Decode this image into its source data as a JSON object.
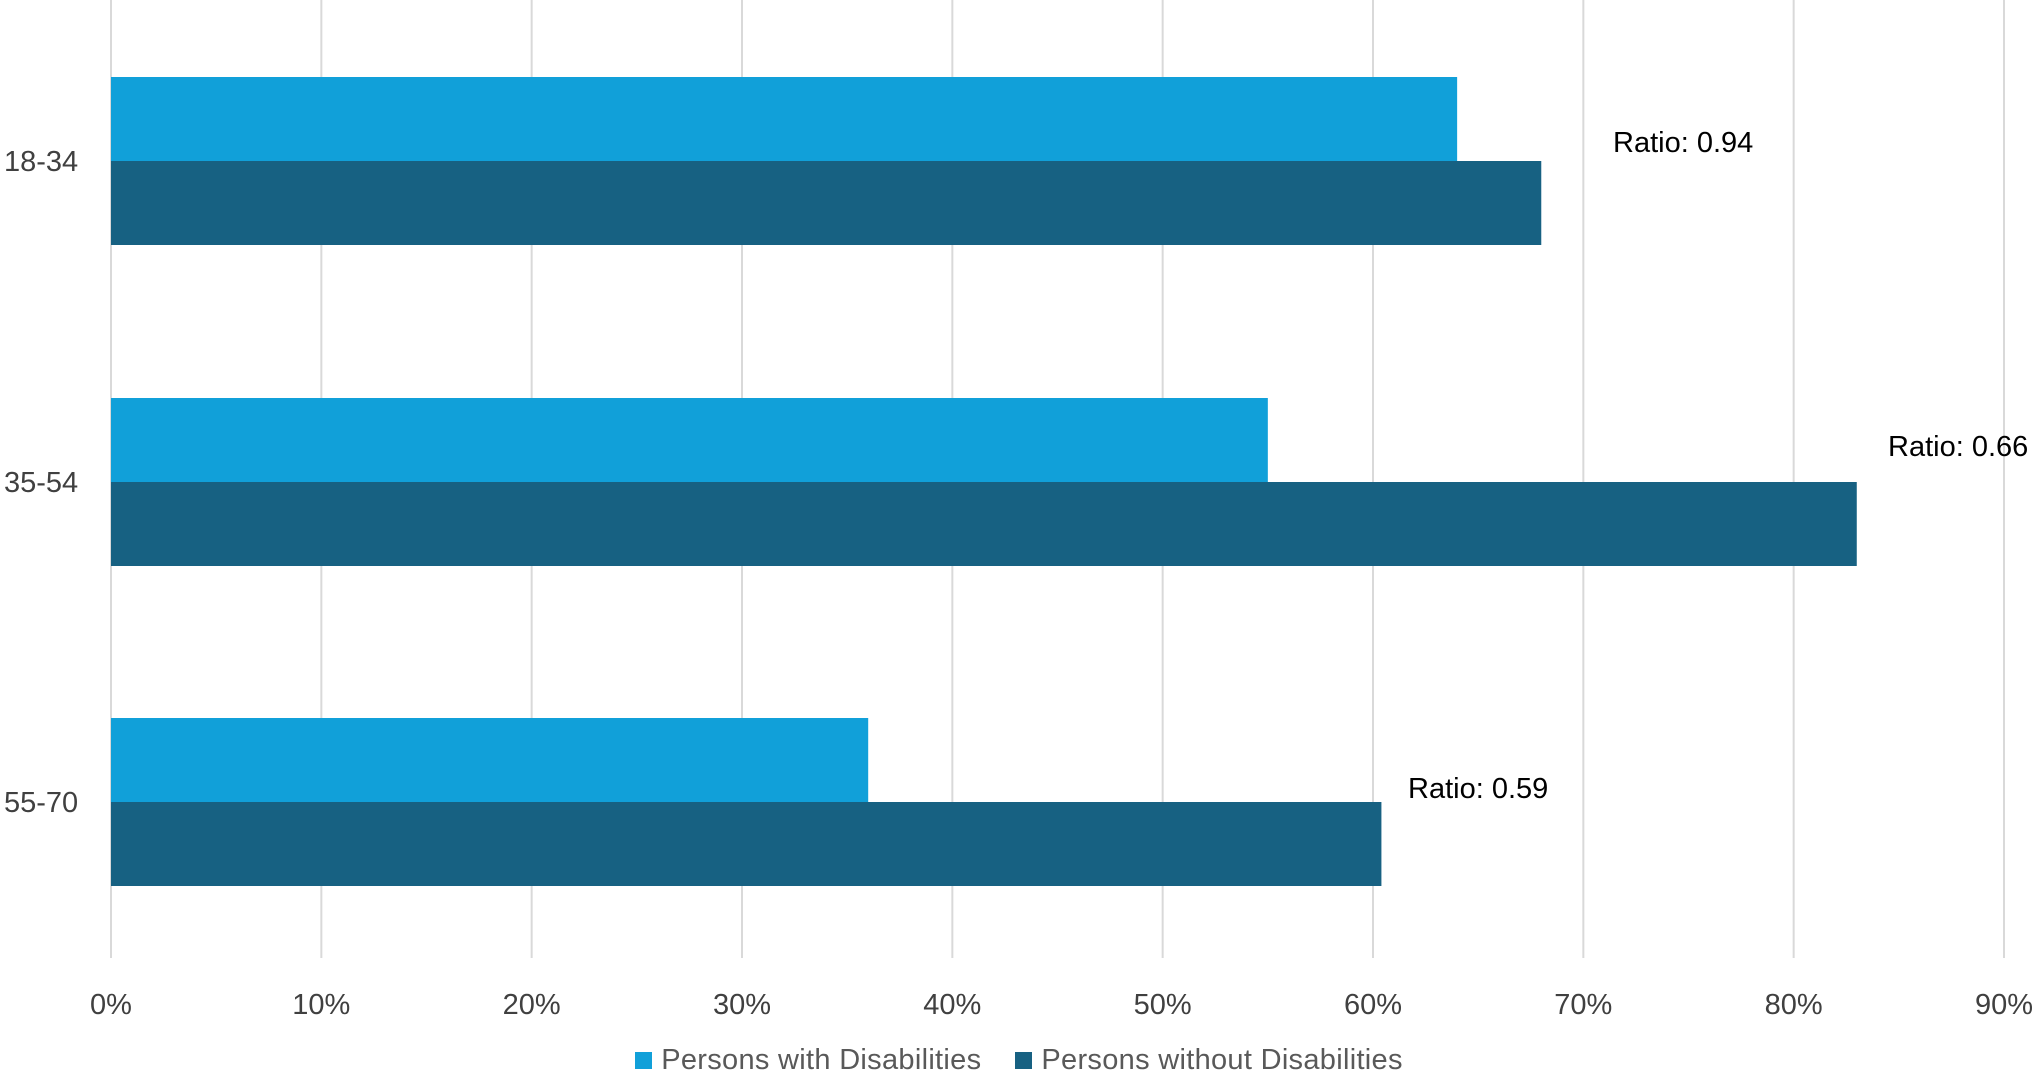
{
  "chart_data": {
    "type": "bar",
    "orientation": "horizontal",
    "categories": [
      "18-34",
      "35-54",
      "55-70"
    ],
    "series": [
      {
        "name": "Persons with Disabilities",
        "values": [
          64,
          55,
          36
        ],
        "color": "#11a0d9"
      },
      {
        "name": "Persons without Disabilities",
        "values": [
          68,
          83,
          60.4
        ],
        "color": "#176182"
      }
    ],
    "annotations": [
      "Ratio: 0.94",
      "Ratio: 0.66",
      "Ratio: 0.59"
    ],
    "xlim": [
      0,
      90
    ],
    "x_ticks": [
      "0%",
      "10%",
      "20%",
      "30%",
      "40%",
      "50%",
      "60%",
      "70%",
      "80%",
      "90%"
    ],
    "grid": "vertical",
    "legend": "bottom",
    "title": "",
    "xlabel": "",
    "ylabel": ""
  }
}
